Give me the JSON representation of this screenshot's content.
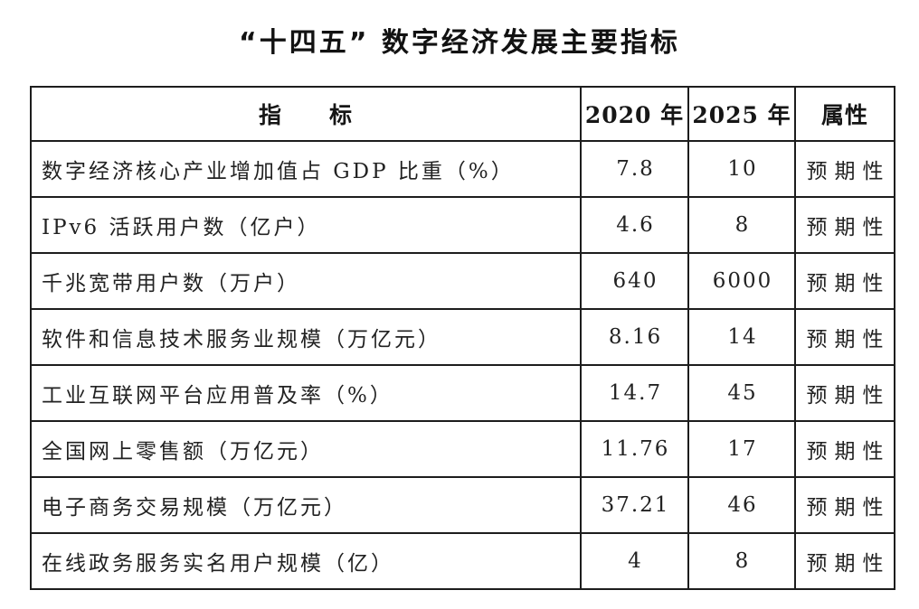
{
  "title": "“十四五” 数字经济发展主要指标",
  "colors": {
    "background": "#ffffff",
    "border": "#1d1d1d",
    "text": "#222222"
  },
  "table": {
    "headers": {
      "indicator": "指　　标",
      "y2020": "2020 年",
      "y2025": "2025 年",
      "attribute": "属性"
    },
    "rows": [
      {
        "indicator": "数字经济核心产业增加值占 GDP 比重（%）",
        "y2020": "7.8",
        "y2025": "10",
        "attribute": "预期性"
      },
      {
        "indicator": "IPv6 活跃用户数（亿户）",
        "y2020": "4.6",
        "y2025": "8",
        "attribute": "预期性"
      },
      {
        "indicator": "千兆宽带用户数（万户）",
        "y2020": "640",
        "y2025": "6000",
        "attribute": "预期性"
      },
      {
        "indicator": "软件和信息技术服务业规模（万亿元）",
        "y2020": "8.16",
        "y2025": "14",
        "attribute": "预期性"
      },
      {
        "indicator": "工业互联网平台应用普及率（%）",
        "y2020": "14.7",
        "y2025": "45",
        "attribute": "预期性"
      },
      {
        "indicator": "全国网上零售额（万亿元）",
        "y2020": "11.76",
        "y2025": "17",
        "attribute": "预期性"
      },
      {
        "indicator": "电子商务交易规模（万亿元）",
        "y2020": "37.21",
        "y2025": "46",
        "attribute": "预期性"
      },
      {
        "indicator": "在线政务服务实名用户规模（亿）",
        "y2020": "4",
        "y2025": "8",
        "attribute": "预期性"
      }
    ]
  }
}
